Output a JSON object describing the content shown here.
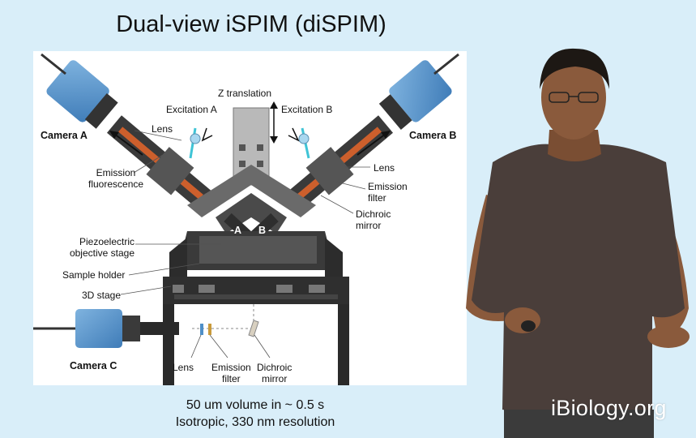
{
  "slide": {
    "title": "Dual-view iSPIM (diSPIM)",
    "caption_line1": "50 um volume in ~ 0.5 s",
    "caption_line2": "Isotropic, 330 nm resolution",
    "watermark": "iBiology.org"
  },
  "figure": {
    "z_translation": "Z translation",
    "excitation_a": "Excitation  A",
    "excitation_b": "Excitation  B",
    "camera_a": "Camera A",
    "camera_b": "Camera B",
    "camera_c": "Camera C",
    "lens_left": "Lens",
    "lens_right": "Lens",
    "emission_fluorescence_1": "Emission",
    "emission_fluorescence_2": "fluorescence",
    "emission_filter_right_1": "Emission",
    "emission_filter_right_2": "filter",
    "dichroic_mirror_right_1": "Dichroic",
    "dichroic_mirror_right_2": "mirror",
    "piezo_1": "Piezoelectric",
    "piezo_2": "objective stage",
    "sample_holder": "Sample holder",
    "stage_3d": "3D stage",
    "objective_a": "A",
    "objective_b": "B",
    "bottom_lens": "Lens",
    "bottom_emission_1": "Emission",
    "bottom_emission_2": "filter",
    "bottom_dichroic_1": "Dichroic",
    "bottom_dichroic_2": "mirror"
  },
  "colors": {
    "background": "#d9eef9",
    "camera_blue": "#4f8fc7",
    "beam_orange": "#e8662a",
    "laser_cyan": "#3fc4d6",
    "watermark": "#ffffff"
  }
}
